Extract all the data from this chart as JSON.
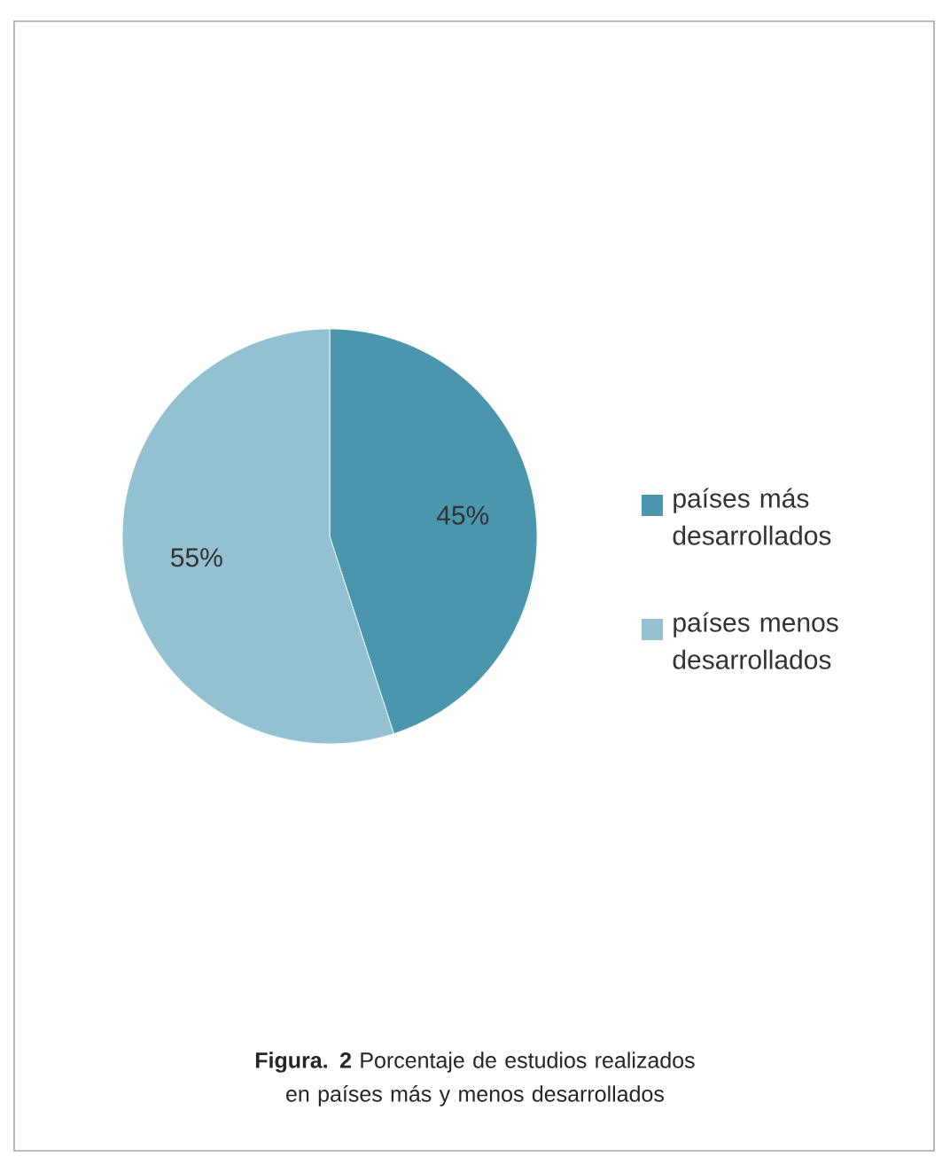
{
  "chart_data": {
    "type": "pie",
    "categories": [
      "países más desarrollados",
      "países menos desarrollados"
    ],
    "values": [
      45,
      55
    ],
    "colors": [
      "#4a97ad",
      "#93c1d2"
    ],
    "value_labels": [
      "45%",
      "55%"
    ],
    "legend": "right",
    "annotations": [
      "**Figura. 2**  Porcentaje de estudios realizados en países más y menos desarrollados"
    ]
  }
}
